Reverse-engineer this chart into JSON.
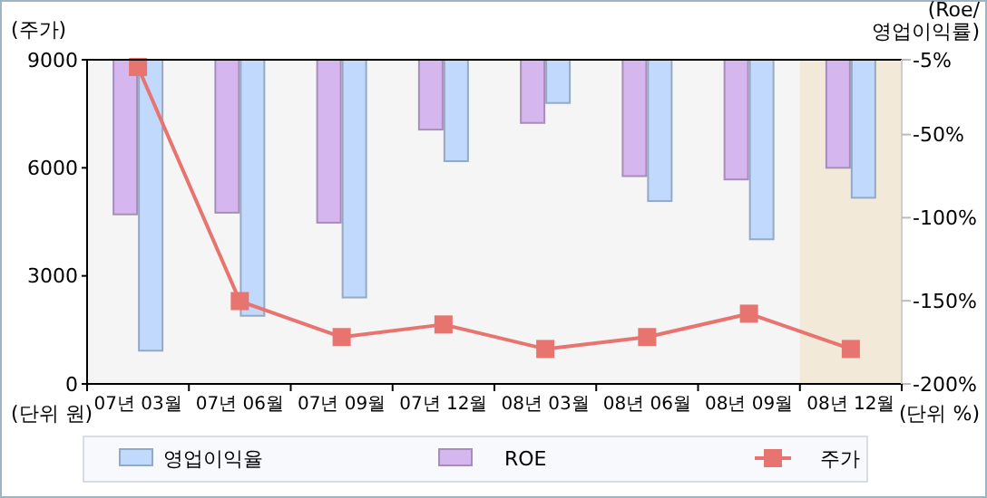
{
  "chart_data": {
    "type": "bar",
    "categories": [
      "07년 03월",
      "07년 06월",
      "07년 09월",
      "07년 12월",
      "08년 03월",
      "08년 06월",
      "08년 09월",
      "08년 12월"
    ],
    "ylabel": "(주가)",
    "y2label": "(Roe/\n영업이익률)",
    "ylim": [
      0,
      9000
    ],
    "yticks": [
      0,
      3000,
      6000,
      9000
    ],
    "y2lim": [
      -200,
      -5
    ],
    "y2ticks": [
      {
        "value": -5,
        "label": "-5%"
      },
      {
        "value": -50,
        "label": "-50%"
      },
      {
        "value": -100,
        "label": "-100%"
      },
      {
        "value": -150,
        "label": "-150%"
      },
      {
        "value": -200,
        "label": "-200%"
      }
    ],
    "series": [
      {
        "name": "영업이익율",
        "axis": "y2",
        "color": "#c0d9fc",
        "values": [
          -180,
          -159,
          -148,
          -66,
          -31,
          -90,
          -113,
          -88
        ]
      },
      {
        "name": "ROE",
        "axis": "y2",
        "color": "#d5b6ee",
        "values": [
          -98,
          -97,
          -103,
          -47,
          -43,
          -75,
          -77,
          -70
        ]
      },
      {
        "name": "주가",
        "type": "line",
        "axis": "y",
        "color": "#e87470",
        "marker": "square",
        "values": [
          8800,
          2300,
          1300,
          1650,
          970,
          1300,
          1950,
          970
        ]
      }
    ],
    "bands": [
      {
        "axis": "x",
        "from": "08년 12월",
        "to": "08년 12월",
        "color": "#f3e9d9"
      }
    ],
    "annotations": [
      "(단위 원)",
      "(단위 %)"
    ],
    "legend": "bottom",
    "grid": false
  }
}
